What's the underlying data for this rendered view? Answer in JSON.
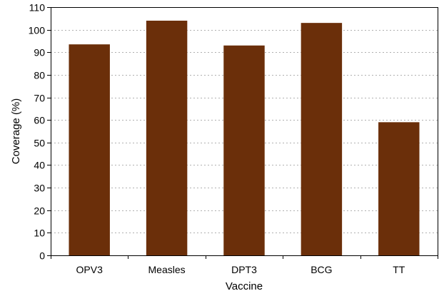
{
  "chart_data": {
    "type": "bar",
    "title": "",
    "xlabel": "Vaccine",
    "ylabel": "Coverage (%)",
    "categories": [
      "OPV3",
      "Measles",
      "DPT3",
      "BCG",
      "TT"
    ],
    "values": [
      93.5,
      104,
      93,
      103,
      59
    ],
    "ylim": [
      0,
      110
    ],
    "yticks": [
      0,
      10,
      20,
      30,
      40,
      50,
      60,
      70,
      80,
      90,
      100,
      110
    ],
    "grid": "horizontal dotted",
    "legend": "none",
    "bar_color": "#6b2f0a",
    "grid_color": "#b0b0b0"
  }
}
